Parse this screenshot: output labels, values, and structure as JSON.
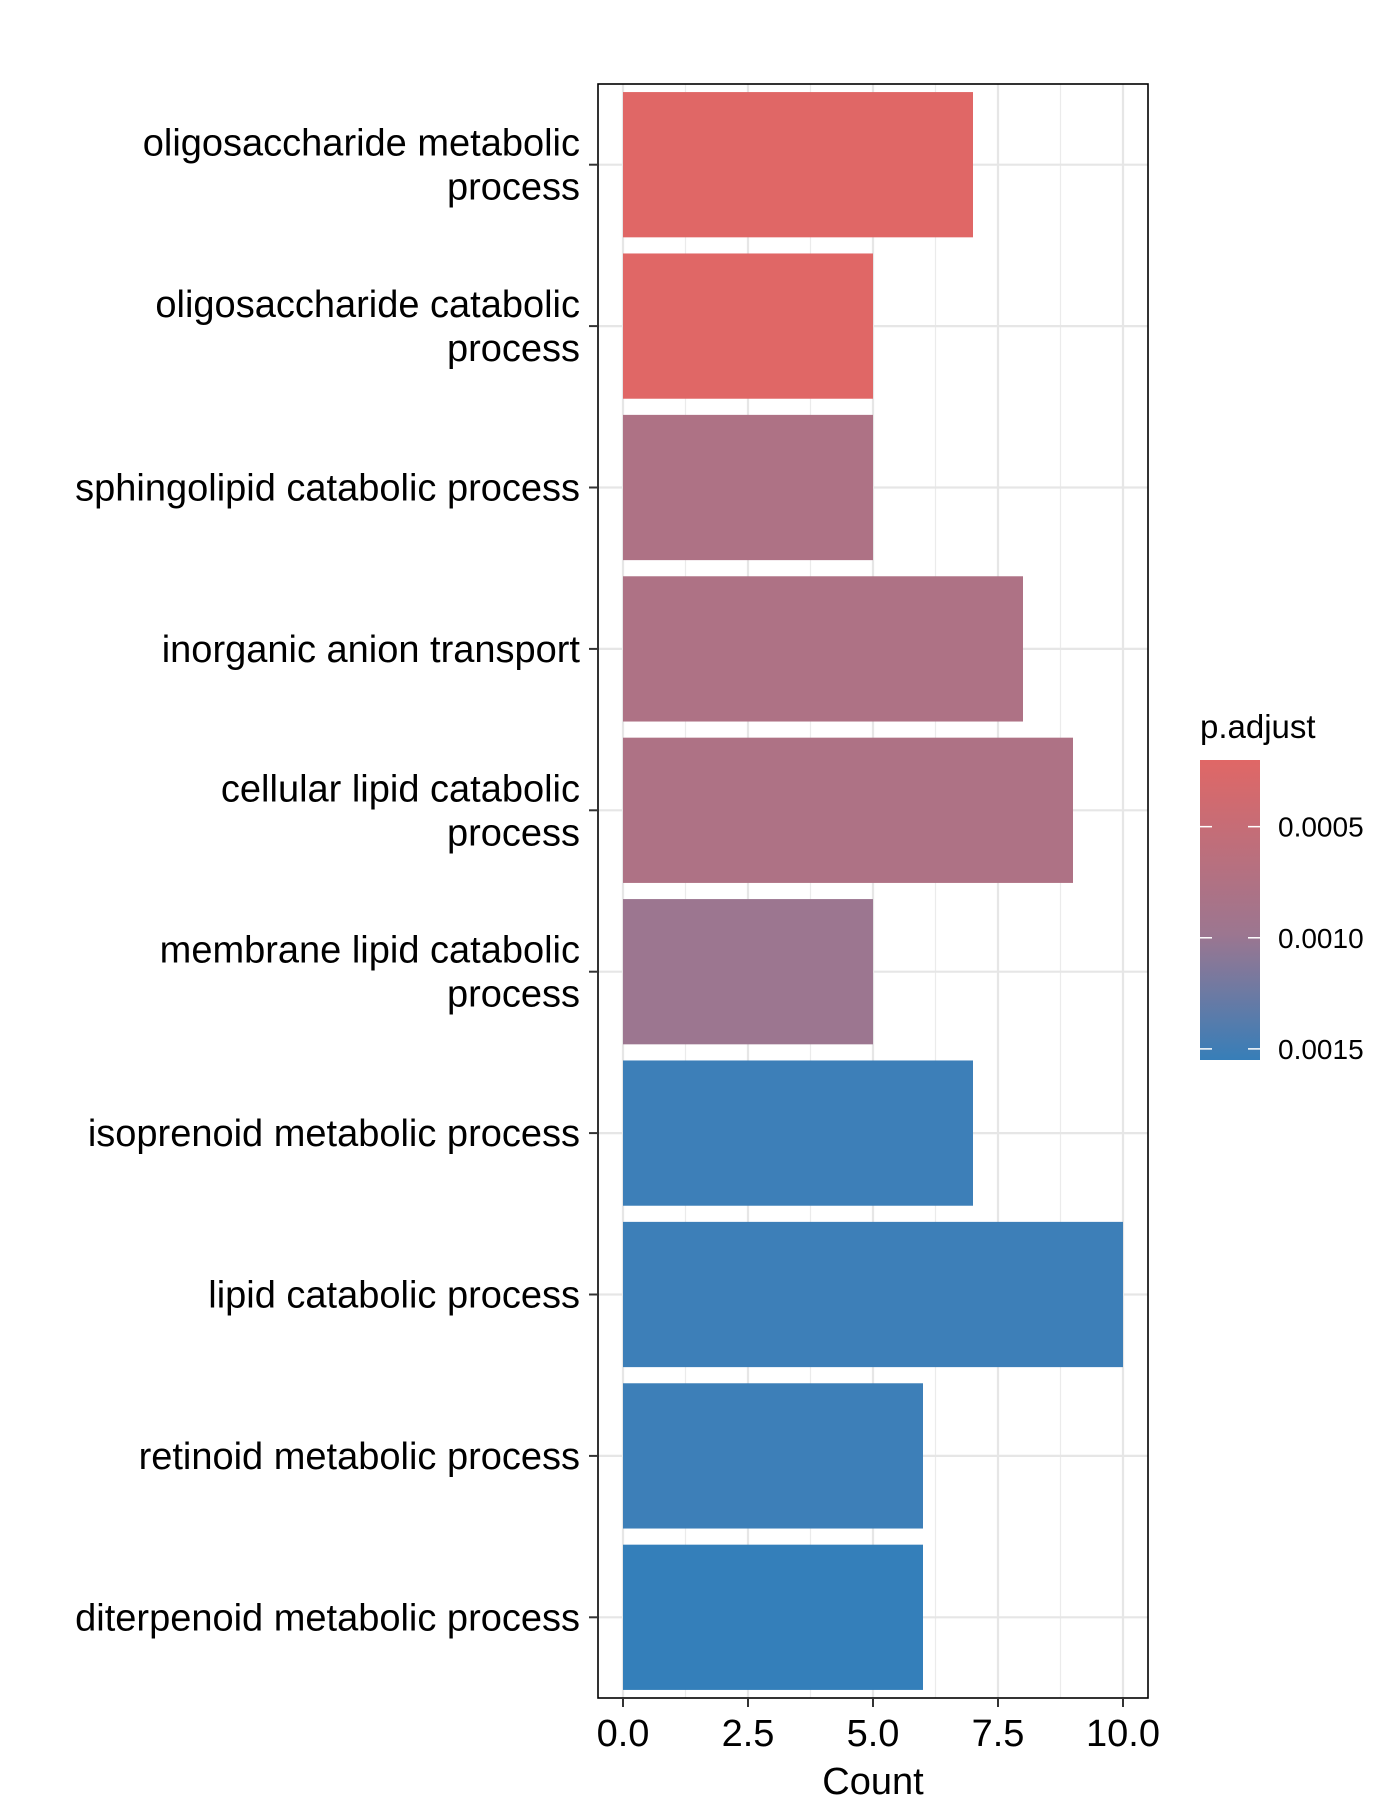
{
  "chart_data": {
    "type": "bar",
    "orientation": "horizontal",
    "categories": [
      [
        "oligosaccharide metabolic",
        "process"
      ],
      [
        "oligosaccharide catabolic",
        "process"
      ],
      [
        "sphingolipid catabolic process"
      ],
      [
        "inorganic anion transport"
      ],
      [
        "cellular lipid catabolic",
        "process"
      ],
      [
        "membrane lipid catabolic",
        "process"
      ],
      [
        "isoprenoid metabolic process"
      ],
      [
        "lipid catabolic process"
      ],
      [
        "retinoid metabolic process"
      ],
      [
        "diterpenoid metabolic process"
      ]
    ],
    "values": [
      7,
      5,
      5,
      8,
      9,
      5,
      7,
      10,
      6,
      6
    ],
    "colors": [
      "#E06766",
      "#E06766",
      "#AE7285",
      "#AE7285",
      "#AE7285",
      "#9C7690",
      "#3D7FB8",
      "#3D7FB8",
      "#3D7FB8",
      "#347FBA"
    ],
    "xlabel": "Count",
    "ylabel": "",
    "xlim": [
      -0.5,
      10.5
    ],
    "x_ticks": [
      "0.0",
      "2.5",
      "5.0",
      "7.5",
      "10.0"
    ],
    "x_tick_values": [
      0,
      2.5,
      5,
      7.5,
      10
    ],
    "grid": true,
    "legend": {
      "title": "p.adjust",
      "placement": "right",
      "gradient_top": "#E06766",
      "gradient_bottom": "#377EB8",
      "range": [
        0.0002,
        0.00155
      ],
      "ticks": [
        "0.0005",
        "0.0010",
        "0.0015"
      ],
      "tick_values": [
        0.0005,
        0.001,
        0.0015
      ]
    }
  }
}
